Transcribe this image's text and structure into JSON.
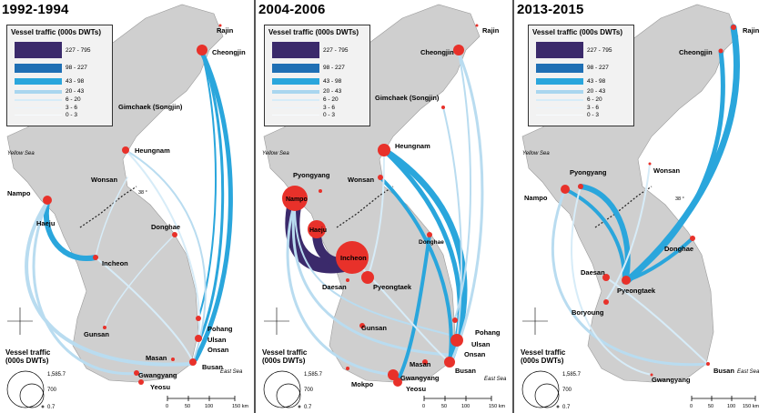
{
  "panels": [
    {
      "title": "1992-1994",
      "ports": [
        "Rajin",
        "Cheongjin",
        "Gimchaek (Songjin)",
        "Heungnam",
        "Wonsan",
        "Nampo",
        "Haeju",
        "Donghae",
        "Incheon",
        "Gunsan",
        "Pohang",
        "Ulsan",
        "Onsan",
        "Masan",
        "Busan",
        "Gwangyang",
        "Yeosu"
      ]
    },
    {
      "title": "2004-2006",
      "ports": [
        "Rajin",
        "Cheongjin",
        "Gimchaek (Songjin)",
        "Heungnam",
        "Pyongyang",
        "Wonsan",
        "Nampo",
        "Haeju",
        "Donghae",
        "Incheon",
        "Daesan",
        "Pyeongtaek",
        "Gunsan",
        "Pohang",
        "Ulsan",
        "Onsan",
        "Masan",
        "Busan",
        "Gwangyang",
        "Mokpo",
        "Yeosu"
      ]
    },
    {
      "title": "2013-2015",
      "ports": [
        "Rajin",
        "Cheongjin",
        "Pyongyang",
        "Wonsan",
        "Nampo",
        "Donghae",
        "Daesan",
        "Pyeongtaek",
        "Boryoung",
        "Gwangyang",
        "Busan"
      ]
    }
  ],
  "legend": {
    "title": "Vessel traffic (000s DWTs)",
    "classes": [
      {
        "label": "227 - 795",
        "color": "#3b2a6b"
      },
      {
        "label": "98 - 227",
        "color": "#1f6fb4"
      },
      {
        "label": "43 - 98",
        "color": "#2aa6dc"
      },
      {
        "label": "20 - 43",
        "color": "#a9d6ef"
      },
      {
        "label": "6 - 20",
        "color": "#d7ecf8"
      },
      {
        "label": "3 - 6",
        "color": "#eaf4fb"
      },
      {
        "label": "0 - 3",
        "color": "#f7fbfe"
      }
    ]
  },
  "size_legend": {
    "title_line1": "Vessel traffic",
    "title_line2": "(000s DWTs)",
    "values": [
      "1,585.7",
      "700",
      "0.7"
    ]
  },
  "map_labels": {
    "yellow_sea": "Yellow Sea",
    "east_sea": "East Sea",
    "parallel": "38 °",
    "scale_ticks": [
      "0",
      "50",
      "100",
      "150 km"
    ]
  },
  "colors": {
    "land": "#cfcfcf",
    "port": "#e8312a",
    "flow_dark": "#3b2a6b",
    "flow_mid": "#2aa6dc",
    "flow_light": "#b9dcf0"
  }
}
